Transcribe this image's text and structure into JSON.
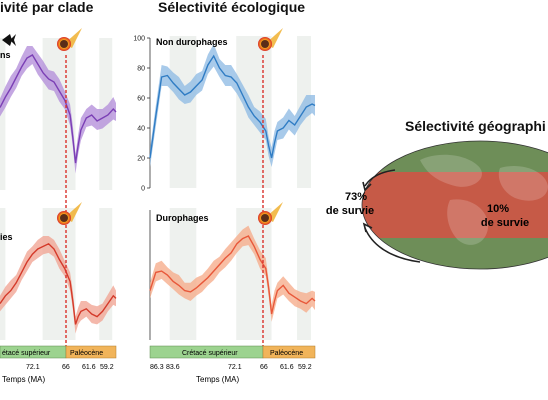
{
  "headings": {
    "left": "ivité par clade",
    "middle": "Sélectivité écologique",
    "right": "Sélectivité géographi"
  },
  "panels": {
    "top_left_label": "ns",
    "bottom_left_label": "ies",
    "top_middle_label": "Non durophages",
    "bottom_middle_label": "Durophages"
  },
  "timeline": {
    "left": {
      "cretaceous": "étacé supérieur",
      "paleocene": "Paléocène",
      "ticks": [
        "72.1",
        "66",
        "61.6",
        "59.2"
      ],
      "axis_label": "Temps (MA)"
    },
    "middle": {
      "cretaceous": "Crétacé supérieur",
      "paleocene": "Paléocène",
      "ticks": [
        "86.3",
        "83.6",
        "72.1",
        "66",
        "61.6",
        "59.2"
      ],
      "axis_label": "Temps (MA)"
    }
  },
  "geography": {
    "high_lat_pct": "73%",
    "high_lat_text": "de survie",
    "low_lat_pct": "10%",
    "low_lat_text": "de survie"
  },
  "colors": {
    "purple": "#7b3fb5",
    "purple_band": "#b08ad8",
    "blue": "#2f7cc4",
    "blue_band": "#8bb8e3",
    "red": "#d43a2a",
    "red_band": "#f0a08f",
    "orange": "#e8583a",
    "orange_band": "#f6a886",
    "cretaceous_bar": "#9cd38f",
    "paleocene_bar": "#f1b45a",
    "kpg_line": "#d9302a",
    "globe_green": "#6e8e58",
    "globe_red": "#c65a47"
  },
  "chart_data": [
    {
      "type": "line",
      "title": "Non durophages",
      "xlabel": "Temps (MA)",
      "ylabel": "",
      "x_ticks": [
        86.3,
        83.6,
        72.1,
        66,
        61.6,
        59.2
      ],
      "ylim": [
        0,
        100
      ],
      "y_ticks": [
        0,
        20,
        40,
        60,
        80,
        100
      ],
      "series": [
        {
          "x": [
            87,
            86,
            85,
            84,
            83,
            82,
            81,
            80,
            79,
            78,
            77,
            76,
            75,
            74,
            73,
            72,
            71,
            70,
            69,
            68,
            67,
            66.5,
            66,
            65.5,
            65,
            64,
            63,
            62,
            61,
            60,
            59,
            58.5
          ],
          "values": [
            20,
            48,
            74,
            75,
            70,
            66,
            62,
            64,
            68,
            72,
            82,
            88,
            80,
            75,
            74,
            70,
            62,
            54,
            48,
            44,
            38,
            28,
            20,
            30,
            38,
            40,
            45,
            42,
            48,
            54,
            56,
            55
          ]
        }
      ]
    },
    {
      "type": "line",
      "title": "Durophages",
      "xlabel": "Temps (MA)",
      "ylabel": "",
      "x_ticks": [
        86.3,
        83.6,
        72.1,
        66,
        61.6,
        59.2
      ],
      "ylim": [
        0,
        100
      ],
      "series": [
        {
          "x": [
            87,
            86,
            85,
            84,
            83,
            82,
            81,
            80,
            79,
            78,
            77,
            76,
            75,
            74,
            73,
            72,
            71,
            70,
            69,
            68,
            67,
            66.5,
            66,
            65.5,
            65,
            64,
            63,
            62,
            61,
            60,
            59,
            58.5
          ],
          "values": [
            38,
            52,
            53,
            50,
            45,
            42,
            38,
            37,
            40,
            44,
            48,
            53,
            58,
            63,
            67,
            74,
            78,
            80,
            72,
            62,
            55,
            40,
            20,
            30,
            38,
            42,
            36,
            33,
            30,
            28,
            32,
            30
          ]
        }
      ]
    },
    {
      "type": "line",
      "title": "",
      "xlabel": "Temps (MA)",
      "series": [
        {
          "x": [
            80,
            79,
            78,
            77,
            76,
            75,
            74,
            73,
            72,
            71,
            70,
            69,
            68,
            67,
            66.5,
            66,
            65.5,
            65,
            64,
            63,
            62,
            61,
            60,
            59,
            58.5
          ],
          "values": [
            55,
            62,
            68,
            75,
            82,
            88,
            90,
            84,
            78,
            74,
            72,
            66,
            60,
            50,
            35,
            18,
            30,
            40,
            48,
            50,
            46,
            48,
            50,
            54,
            52
          ]
        }
      ]
    },
    {
      "type": "line",
      "title": "",
      "xlabel": "Temps (MA)",
      "series": [
        {
          "x": [
            80,
            79,
            78,
            77,
            76,
            75,
            74,
            73,
            72,
            71,
            70,
            69,
            68,
            67,
            66.5,
            66,
            65.5,
            65,
            64,
            63,
            62,
            61,
            60,
            59,
            58.5
          ],
          "values": [
            28,
            34,
            38,
            44,
            52,
            60,
            66,
            70,
            72,
            74,
            70,
            62,
            55,
            45,
            30,
            12,
            18,
            22,
            24,
            20,
            18,
            22,
            28,
            34,
            32
          ]
        }
      ]
    }
  ]
}
